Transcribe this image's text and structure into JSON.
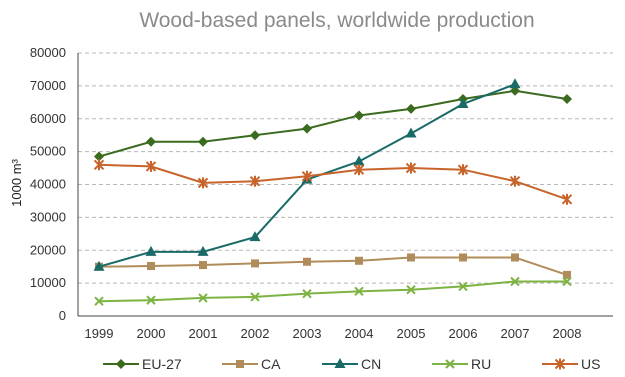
{
  "chart_data": {
    "type": "line",
    "title": "Wood-based panels, worldwide production",
    "ylabel": "1000 m³",
    "xlabel": "",
    "categories": [
      "1999",
      "2000",
      "2001",
      "2002",
      "2003",
      "2004",
      "2005",
      "2006",
      "2007",
      "2008"
    ],
    "ylim": [
      0,
      80000
    ],
    "yticks": [
      0,
      10000,
      20000,
      30000,
      40000,
      50000,
      60000,
      70000,
      80000
    ],
    "ytick_labels": [
      "0",
      "10000",
      "20000",
      "30000",
      "40000",
      "50000",
      "60000",
      "70000",
      "80000"
    ],
    "grid": "horizontal dashed",
    "legend_position": "bottom",
    "series": [
      {
        "name": "EU-27",
        "color": "#3a6b1f",
        "marker": "diamond",
        "values": [
          48500,
          53000,
          53000,
          55000,
          57000,
          61000,
          63000,
          66000,
          68500,
          66000
        ]
      },
      {
        "name": "CA",
        "color": "#b08c5a",
        "marker": "square",
        "values": [
          15000,
          15200,
          15500,
          16000,
          16500,
          16800,
          17800,
          17800,
          17800,
          12500
        ]
      },
      {
        "name": "CN",
        "color": "#1a6b68",
        "marker": "triangle",
        "values": [
          15000,
          19500,
          19500,
          24000,
          41500,
          47000,
          55500,
          64500,
          70500,
          null
        ]
      },
      {
        "name": "RU",
        "color": "#7cb342",
        "marker": "x",
        "values": [
          4500,
          4800,
          5500,
          5800,
          6800,
          7500,
          8000,
          9000,
          10500,
          10500
        ]
      },
      {
        "name": "US",
        "color": "#c8642a",
        "marker": "star",
        "values": [
          46000,
          45500,
          40500,
          41000,
          42500,
          44500,
          45000,
          44500,
          41000,
          35500
        ]
      }
    ]
  }
}
